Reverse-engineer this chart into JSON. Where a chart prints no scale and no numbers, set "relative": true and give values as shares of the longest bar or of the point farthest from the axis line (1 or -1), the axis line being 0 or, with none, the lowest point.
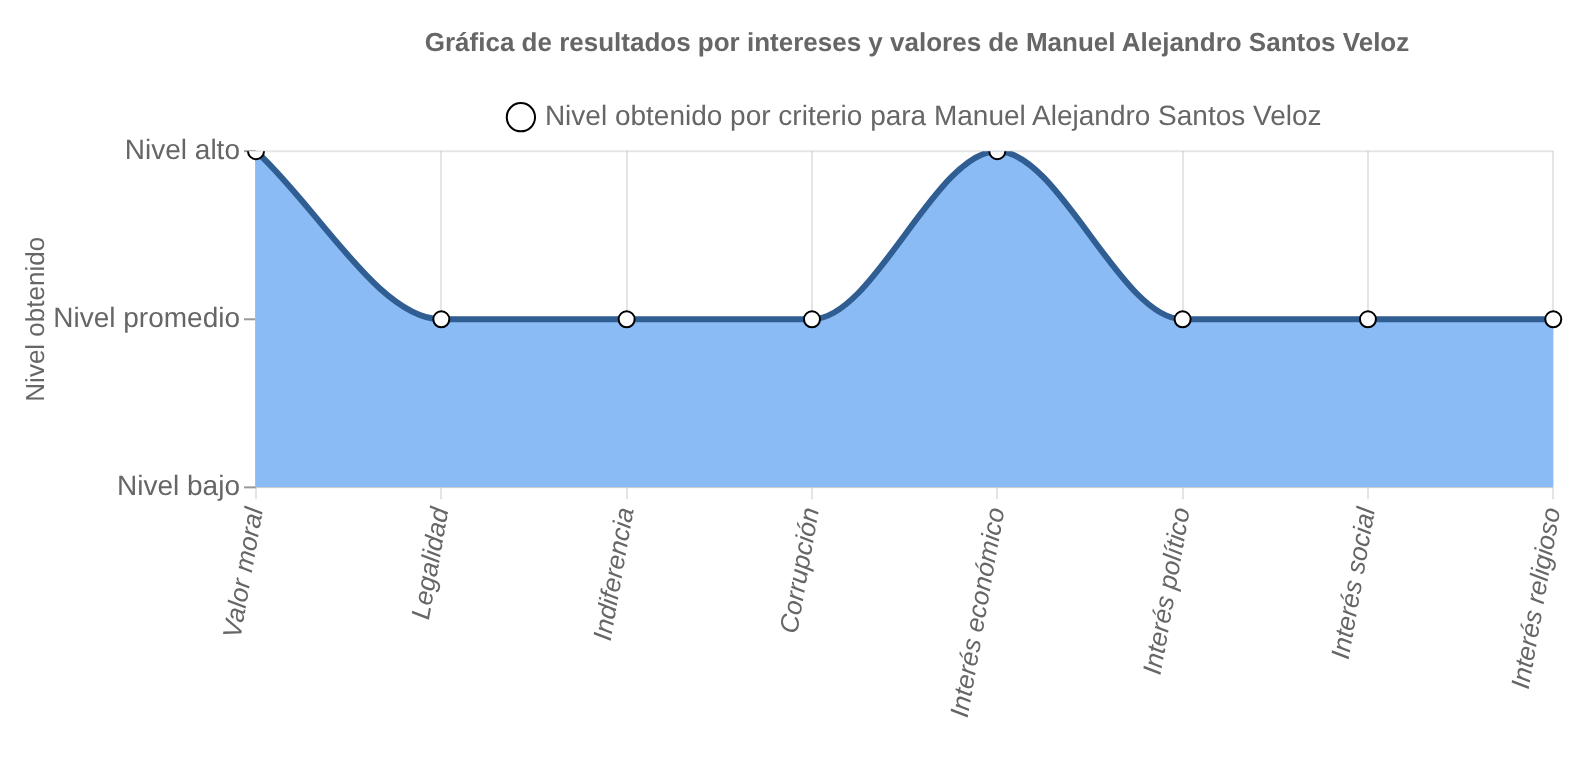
{
  "chart_data": {
    "type": "area",
    "title": "Gráfica de resultados por intereses y valores de Manuel Alejandro Santos Veloz",
    "annotations": [
      "Nivel obtenido"
    ],
    "categories": [
      "Valor moral",
      "Legalidad",
      "Indiferencia",
      "Corrupción",
      "Interés económico",
      "Interés político",
      "Interés social",
      "Interés religioso"
    ],
    "series": [
      {
        "name": "Nivel obtenido por criterio para Manuel Alejandro Santos Veloz",
        "color": "#8abbf5",
        "values": [
          1,
          0.5,
          0.5,
          0.5,
          1,
          0.5,
          0.5,
          0.5
        ]
      }
    ],
    "relative": true,
    "ref_lines": [
      {
        "axis": "y",
        "value": 0,
        "label": "Nivel bajo"
      },
      {
        "axis": "y",
        "value": 0.5,
        "label": "Nivel promedio"
      },
      {
        "axis": "y",
        "value": 1,
        "label": "Nivel alto"
      }
    ],
    "grid": true,
    "legend": "top",
    "marker": "circle"
  }
}
